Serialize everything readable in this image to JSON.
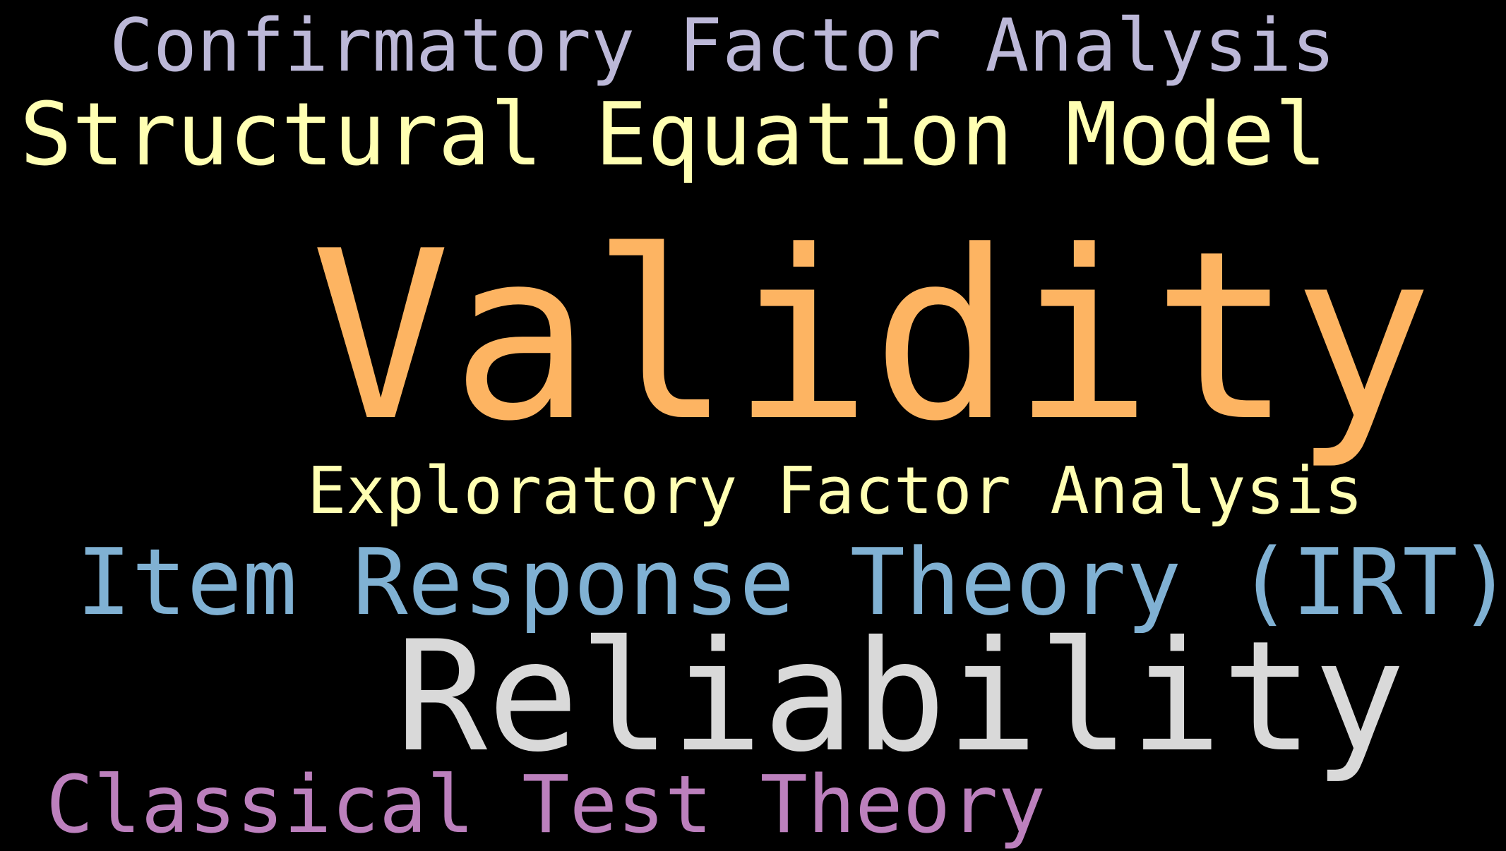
{
  "word_cloud": {
    "background": "#000000",
    "words": [
      {
        "id": "confirmatory",
        "text": "Confirmatory Factor Analysis",
        "color": "#bcb8d8"
      },
      {
        "id": "sem",
        "text": "Structural Equation Model",
        "color": "#ffffb2"
      },
      {
        "id": "validity",
        "text": "Validity",
        "color": "#fdb462"
      },
      {
        "id": "efa",
        "text": "Exploratory Factor Analysis",
        "color": "#ffffb2"
      },
      {
        "id": "irt",
        "text": "Item Response Theory (IRT)",
        "color": "#80b1d3"
      },
      {
        "id": "reliability",
        "text": "Reliability",
        "color": "#d9d9d9"
      },
      {
        "id": "ctt",
        "text": "Classical Test Theory",
        "color": "#bc80bd"
      }
    ]
  }
}
